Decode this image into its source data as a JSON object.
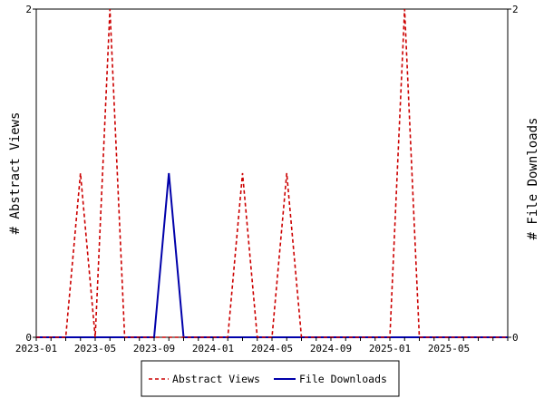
{
  "chart_data": {
    "type": "line",
    "x": [
      "2023-01",
      "2023-02",
      "2023-03",
      "2023-04",
      "2023-05",
      "2023-06",
      "2023-07",
      "2023-08",
      "2023-09",
      "2023-10",
      "2023-11",
      "2023-12",
      "2024-01",
      "2024-02",
      "2024-03",
      "2024-04",
      "2024-05",
      "2024-06",
      "2024-07",
      "2024-08",
      "2024-09",
      "2024-10",
      "2024-11",
      "2024-12",
      "2025-01",
      "2025-02",
      "2025-03",
      "2025-04",
      "2025-05",
      "2025-06",
      "2025-07",
      "2025-08",
      "2025-09"
    ],
    "xticks": [
      "2023-01",
      "2023-05",
      "2023-09",
      "2024-01",
      "2024-05",
      "2024-09",
      "2025-01",
      "2025-05"
    ],
    "series": [
      {
        "name": "Abstract Views",
        "axis": "left",
        "color": "#cc0000",
        "dash": "dashed",
        "values": [
          0,
          0,
          0,
          1,
          0,
          2,
          0,
          0,
          0,
          0,
          0,
          0,
          0,
          0,
          1,
          0,
          0,
          1,
          0,
          0,
          0,
          0,
          0,
          0,
          0,
          2,
          0,
          0,
          0,
          0,
          0,
          0,
          0
        ]
      },
      {
        "name": "File Downloads",
        "axis": "right",
        "color": "#0000aa",
        "dash": "solid",
        "values": [
          0,
          0,
          0,
          0,
          0,
          0,
          0,
          0,
          0,
          1,
          0,
          0,
          0,
          0,
          0,
          0,
          0,
          0,
          0,
          0,
          0,
          0,
          0,
          0,
          0,
          0,
          0,
          0,
          0,
          0,
          0,
          0,
          0
        ]
      }
    ],
    "ylabel": "# Abstract Views",
    "y2label": "# File Downloads",
    "ylim": [
      0,
      2
    ],
    "y2lim": [
      0,
      2
    ],
    "yticks": [
      "0",
      "2"
    ],
    "y2ticks": [
      "0",
      "2"
    ],
    "grid": false,
    "legend": "bottom"
  }
}
